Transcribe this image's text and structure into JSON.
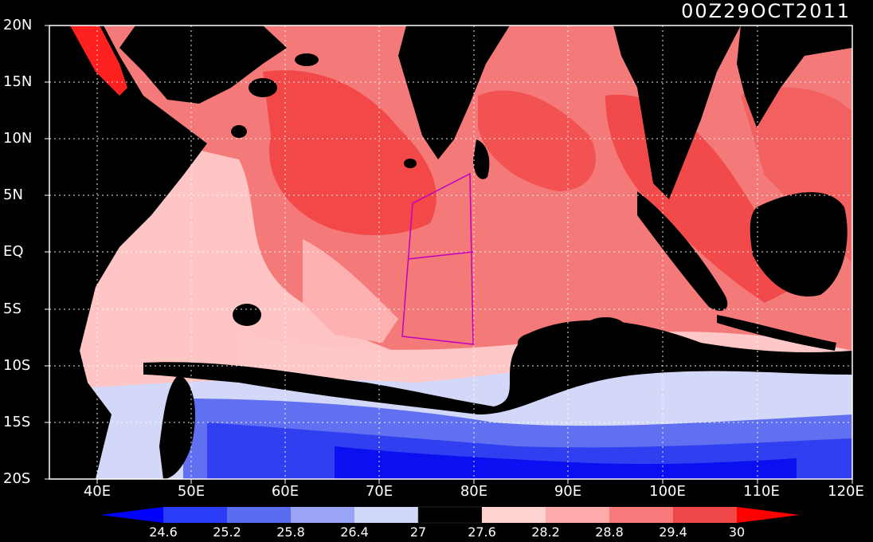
{
  "timestamp": "00Z29OCT2011",
  "lat_labels": [
    "20N",
    "15N",
    "10N",
    "5N",
    "EQ",
    "5S",
    "10S",
    "15S",
    "20S"
  ],
  "lon_labels": [
    "40E",
    "50E",
    "60E",
    "70E",
    "80E",
    "90E",
    "100E",
    "110E",
    "120E"
  ],
  "colorbar": {
    "labels": [
      "24.6",
      "25.2",
      "25.8",
      "26.4",
      "27",
      "27.6",
      "28.2",
      "28.8",
      "29.4",
      "30"
    ],
    "colors": [
      "#0000ff",
      "#2a3cf5",
      "#5a6cf0",
      "#9aa4f5",
      "#d2d8fa",
      "#000000",
      "#ffd2d2",
      "#ffaaaa",
      "#f87a7a",
      "#f04848",
      "#ff0000"
    ]
  },
  "colors": {
    "land": "#000000",
    "warm": "#f26a6a",
    "hot": "#f03838",
    "mild": "#ffc8c8",
    "cool": "#d4d8f8",
    "cold": "#4050f0",
    "coldest": "#0a10f0",
    "box": "#c000c0"
  }
}
